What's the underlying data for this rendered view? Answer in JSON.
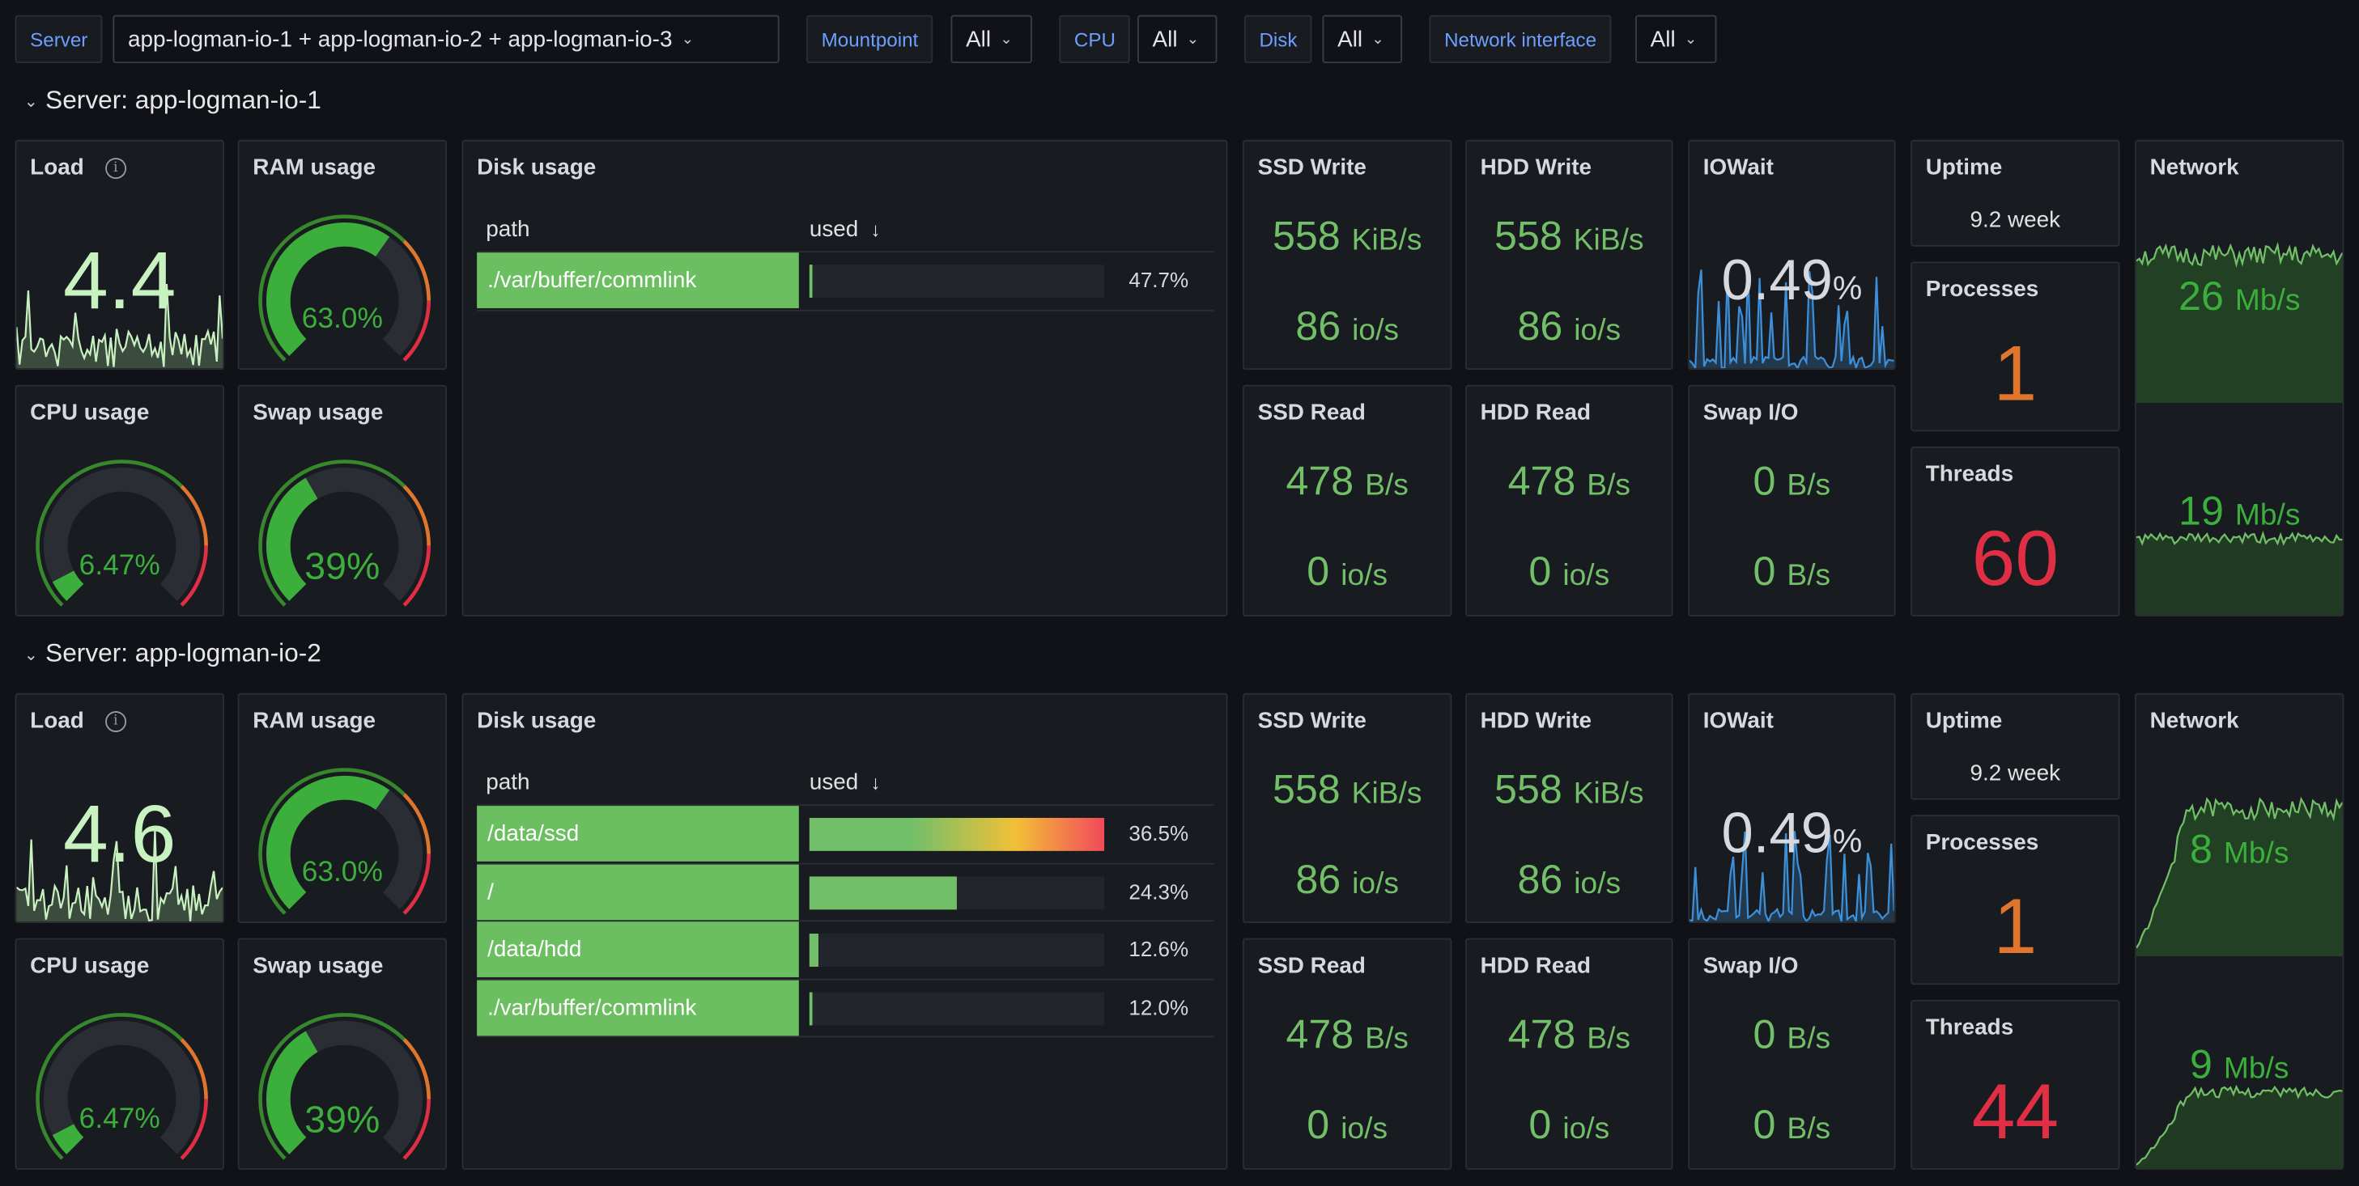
{
  "variables": [
    {
      "label": "Server",
      "value": "app-logman-io-1 + app-logman-io-2 + app-logman-io-3"
    },
    {
      "label": "Mountpoint",
      "value": "All"
    },
    {
      "label": "CPU",
      "value": "All"
    },
    {
      "label": "Disk",
      "value": "All"
    },
    {
      "label": "Network interface",
      "value": "All"
    }
  ],
  "panel_titles": {
    "load": "Load",
    "ram": "RAM usage",
    "cpu": "CPU usage",
    "swap": "Swap usage",
    "disk": "Disk usage",
    "ssd_write": "SSD Write",
    "hdd_write": "HDD Write",
    "iowait": "IOWait",
    "ssd_read": "SSD Read",
    "hdd_read": "HDD Read",
    "swap_io": "Swap I/O",
    "uptime": "Uptime",
    "processes": "Processes",
    "threads": "Threads",
    "network": "Network"
  },
  "table_columns": {
    "path": "path",
    "used": "used"
  },
  "colors": {
    "green": "#73bf69",
    "orange": "#e0752d",
    "red": "#e02f44",
    "blue": "#3d8fd9",
    "white": "#d8d9de"
  },
  "rows": [
    {
      "title": "Server: app-logman-io-1",
      "load": "4.4",
      "ram": "63.0%",
      "ram_fraction": 0.63,
      "cpu": "6.47%",
      "cpu_fraction": 0.0647,
      "swap": "39%",
      "swap_fraction": 0.39,
      "disks": [
        {
          "path": "./var/buffer/commlink",
          "used": "47.7%",
          "fraction": 0.01
        }
      ],
      "ssd_write": {
        "rate": "558",
        "rate_unit": "KiB/s",
        "ops": "86",
        "ops_unit": "io/s"
      },
      "hdd_write": {
        "rate": "558",
        "rate_unit": "KiB/s",
        "ops": "86",
        "ops_unit": "io/s"
      },
      "iowait": {
        "value": "0.49",
        "unit": "%"
      },
      "ssd_read": {
        "rate": "478",
        "rate_unit": "B/s",
        "ops": "0",
        "ops_unit": "io/s"
      },
      "hdd_read": {
        "rate": "478",
        "rate_unit": "B/s",
        "ops": "0",
        "ops_unit": "io/s"
      },
      "swap_io": {
        "in": "0",
        "in_unit": "B/s",
        "out": "0",
        "out_unit": "B/s"
      },
      "uptime": "9.2 week",
      "processes": "1",
      "threads": "60",
      "network": {
        "rx": "26",
        "rx_unit": "Mb/s",
        "tx": "19",
        "tx_unit": "Mb/s"
      }
    },
    {
      "title": "Server: app-logman-io-2",
      "load": "4.6",
      "ram": "63.0%",
      "ram_fraction": 0.63,
      "cpu": "6.47%",
      "cpu_fraction": 0.0647,
      "swap": "39%",
      "swap_fraction": 0.39,
      "disks": [
        {
          "path": "/data/ssd",
          "used": "36.5%",
          "fraction": 1.0,
          "gradient": true
        },
        {
          "path": "/",
          "used": "24.3%",
          "fraction": 0.5
        },
        {
          "path": "/data/hdd",
          "used": "12.6%",
          "fraction": 0.03
        },
        {
          "path": "./var/buffer/commlink",
          "used": "12.0%",
          "fraction": 0.01
        }
      ],
      "ssd_write": {
        "rate": "558",
        "rate_unit": "KiB/s",
        "ops": "86",
        "ops_unit": "io/s"
      },
      "hdd_write": {
        "rate": "558",
        "rate_unit": "KiB/s",
        "ops": "86",
        "ops_unit": "io/s"
      },
      "iowait": {
        "value": "0.49",
        "unit": "%"
      },
      "ssd_read": {
        "rate": "478",
        "rate_unit": "B/s",
        "ops": "0",
        "ops_unit": "io/s"
      },
      "hdd_read": {
        "rate": "478",
        "rate_unit": "B/s",
        "ops": "0",
        "ops_unit": "io/s"
      },
      "swap_io": {
        "in": "0",
        "in_unit": "B/s",
        "out": "0",
        "out_unit": "B/s"
      },
      "uptime": "9.2 week",
      "processes": "1",
      "threads": "44",
      "network": {
        "rx": "8",
        "rx_unit": "Mb/s",
        "tx": "9",
        "tx_unit": "Mb/s"
      }
    }
  ]
}
